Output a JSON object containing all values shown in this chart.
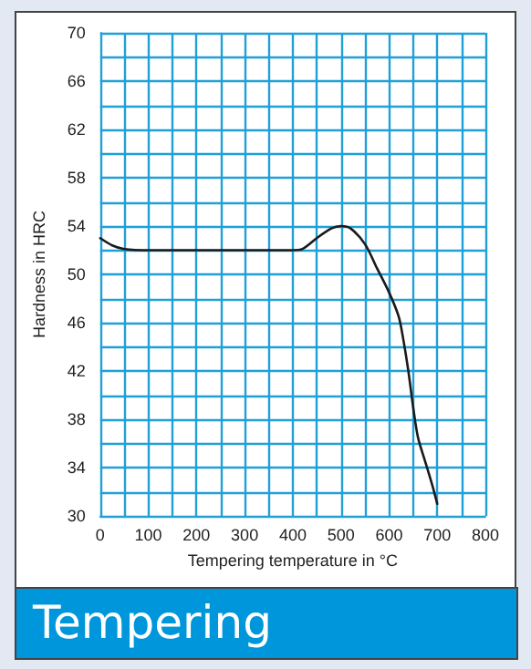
{
  "chart_data": {
    "type": "line",
    "title": "Tempering",
    "xlabel": "Tempering temperature in °C",
    "ylabel": "Hardness in HRC",
    "x": [
      0,
      25,
      50,
      100,
      200,
      300,
      400,
      420,
      450,
      480,
      500,
      520,
      550,
      575,
      600,
      620,
      630,
      640,
      650,
      660,
      675,
      690,
      700
    ],
    "series": [
      {
        "color": "#1a1a1a",
        "values": [
          53,
          52.4,
          52.1,
          52,
          52,
          52,
          52,
          52.1,
          53,
          53.8,
          54,
          53.8,
          52.5,
          50.5,
          48.5,
          46.5,
          44.5,
          42,
          39,
          36.5,
          34.5,
          32.5,
          31
        ]
      }
    ],
    "xlim": [
      0,
      800
    ],
    "xticks": [
      0,
      {
        "value": 50,
        "label": null
      },
      100,
      {
        "value": 150,
        "label": null
      },
      200,
      {
        "value": 250,
        "label": null
      },
      300,
      {
        "value": 350,
        "label": null
      },
      400,
      {
        "value": 450,
        "label": null
      },
      500,
      {
        "value": 550,
        "label": null
      },
      600,
      {
        "value": 650,
        "label": null
      },
      700,
      {
        "value": 750,
        "label": null
      },
      800
    ],
    "ylim": [
      30,
      70
    ],
    "yticks": [
      30,
      {
        "value": 32,
        "label": null
      },
      34,
      {
        "value": 36,
        "label": null
      },
      38,
      {
        "value": 40,
        "label": null
      },
      42,
      {
        "value": 44,
        "label": null
      },
      46,
      {
        "value": 48,
        "label": null
      },
      50,
      {
        "value": 52,
        "label": null
      },
      54,
      {
        "value": 56,
        "label": null
      },
      58,
      {
        "value": 60,
        "label": null
      },
      62,
      {
        "value": 64,
        "label": null
      },
      66,
      {
        "value": 68,
        "label": null
      },
      70
    ],
    "grid": true,
    "marker": "none",
    "line_style": "solid"
  }
}
